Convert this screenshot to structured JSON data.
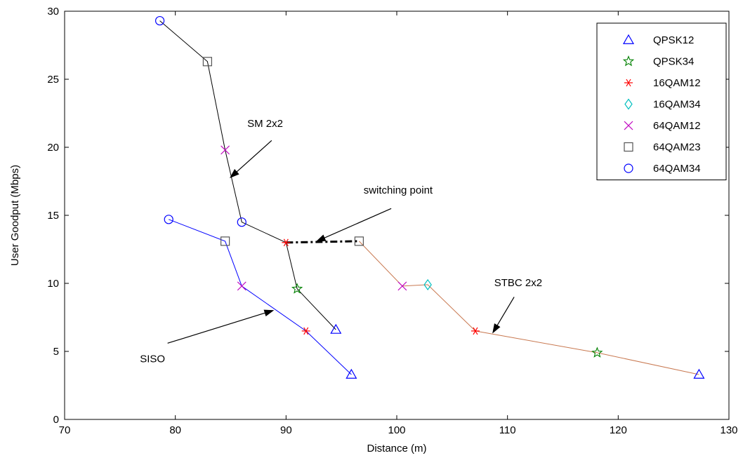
{
  "chart_data": {
    "type": "line",
    "xlabel": "Distance (m)",
    "ylabel": "User Goodput (Mbps)",
    "xlim": [
      70,
      130
    ],
    "ylim": [
      0,
      30
    ],
    "x_ticks": [
      "70",
      "80",
      "90",
      "100",
      "110",
      "120",
      "130"
    ],
    "y_ticks": [
      "0",
      "5",
      "10",
      "15",
      "20",
      "25",
      "30"
    ],
    "grid": false,
    "legend_position": "top-right",
    "legend": [
      {
        "name": "QPSK12",
        "marker": "triangle",
        "color": "#0000ff"
      },
      {
        "name": "QPSK34",
        "marker": "star",
        "color": "#008000"
      },
      {
        "name": "16QAM12",
        "marker": "asterisk",
        "color": "#ff0000"
      },
      {
        "name": "16QAM34",
        "marker": "diamond",
        "color": "#00bfbf"
      },
      {
        "name": "64QAM12",
        "marker": "x",
        "color": "#bf00bf"
      },
      {
        "name": "64QAM23",
        "marker": "square",
        "color": "#555555"
      },
      {
        "name": "64QAM34",
        "marker": "circle",
        "color": "#0000ff"
      }
    ],
    "curves": [
      {
        "line_color": "#000000",
        "points": [
          {
            "x": 78.6,
            "y": 29.3,
            "marker": "circle"
          },
          {
            "x": 82.9,
            "y": 26.3,
            "marker": "square"
          },
          {
            "x": 84.5,
            "y": 19.8,
            "marker": "x"
          },
          {
            "x": 86.0,
            "y": 14.5,
            "marker": "circle"
          },
          {
            "x": 90.0,
            "y": 13.0,
            "marker": "asterisk"
          },
          {
            "x": 91.0,
            "y": 9.6,
            "marker": "star"
          },
          {
            "x": 94.5,
            "y": 6.6,
            "marker": "triangle"
          }
        ]
      },
      {
        "line_color": "#0000ff",
        "points": [
          {
            "x": 79.4,
            "y": 14.7,
            "marker": "circle"
          },
          {
            "x": 84.5,
            "y": 13.1,
            "marker": "square"
          },
          {
            "x": 86.0,
            "y": 9.8,
            "marker": "x"
          },
          {
            "x": 91.8,
            "y": 6.5,
            "marker": "asterisk"
          },
          {
            "x": 95.9,
            "y": 3.3,
            "marker": "triangle"
          }
        ]
      },
      {
        "line_color": "#c87850",
        "points": [
          {
            "x": 96.6,
            "y": 13.1,
            "marker": "square"
          },
          {
            "x": 100.5,
            "y": 9.8,
            "marker": "x"
          },
          {
            "x": 102.8,
            "y": 9.9,
            "marker": "diamond"
          },
          {
            "x": 107.1,
            "y": 6.5,
            "marker": "asterisk"
          },
          {
            "x": 118.1,
            "y": 4.9,
            "marker": "star"
          },
          {
            "x": 127.3,
            "y": 3.3,
            "marker": "triangle"
          }
        ]
      }
    ],
    "switching_line": {
      "x": [
        90.0,
        96.6
      ],
      "y": [
        13.0,
        13.1
      ]
    },
    "annotations": [
      {
        "text": "SM 2x2",
        "text_at": [
          86.5,
          21.5
        ],
        "arrow_from": [
          88.7,
          20.5
        ],
        "arrow_to": [
          85.0,
          17.8
        ]
      },
      {
        "text": "switching point",
        "text_at": [
          97.0,
          16.6
        ],
        "arrow_from": [
          99.5,
          15.5
        ],
        "arrow_to": [
          92.8,
          13.1
        ]
      },
      {
        "text": "STBC 2x2",
        "text_at": [
          108.8,
          9.8
        ],
        "arrow_from": [
          110.6,
          9.0
        ],
        "arrow_to": [
          108.7,
          6.4
        ]
      },
      {
        "text": "SISO",
        "text_at": [
          76.8,
          4.2
        ],
        "arrow_from": [
          79.3,
          5.6
        ],
        "arrow_to": [
          88.8,
          8.0
        ]
      }
    ]
  }
}
